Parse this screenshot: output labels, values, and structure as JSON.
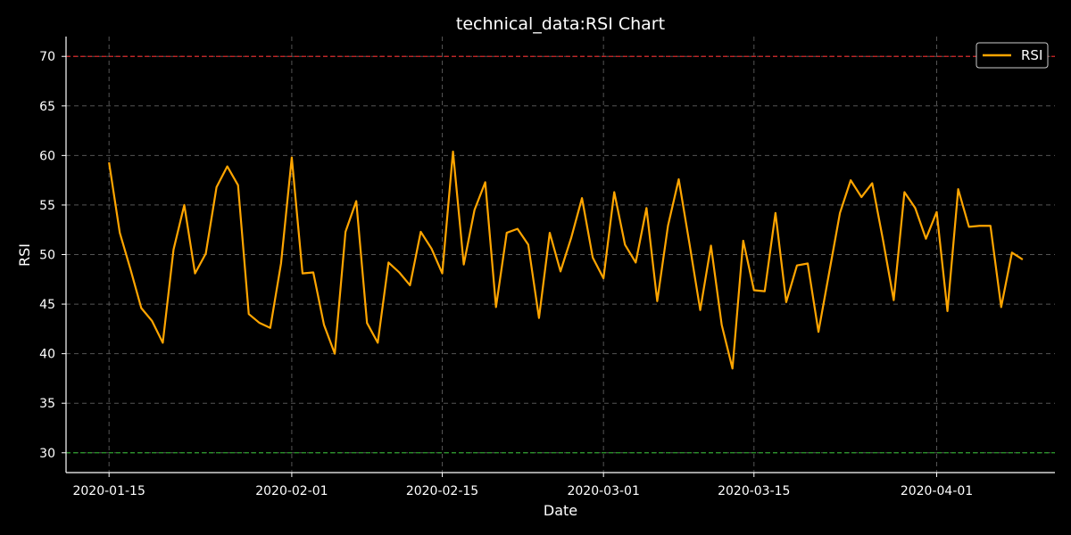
{
  "chart_data": {
    "type": "line",
    "title": "technical_data:RSI Chart",
    "xlabel": "Date",
    "ylabel": "RSI",
    "x_start": "2020-01-15",
    "x_end": "2020-04-08",
    "xlim": [
      "2020-01-11",
      "2020-04-12"
    ],
    "ylim": [
      28,
      72
    ],
    "yticks": [
      30,
      35,
      40,
      45,
      50,
      55,
      60,
      65,
      70
    ],
    "xticks": [
      "2020-01-15",
      "2020-02-01",
      "2020-02-15",
      "2020-03-01",
      "2020-03-15",
      "2020-04-01"
    ],
    "grid": true,
    "legend_position": "top-right",
    "reference_lines": [
      {
        "value": 70,
        "color": "#d62728"
      },
      {
        "value": 30,
        "color": "#2ca02c"
      }
    ],
    "series": [
      {
        "name": "RSI",
        "color": "#FFA500",
        "values": [
          59.3,
          52.2,
          48.5,
          44.6,
          43.3,
          41.1,
          50.5,
          55.0,
          48.1,
          50.1,
          56.8,
          58.9,
          57.0,
          44.0,
          43.1,
          42.6,
          49.1,
          59.8,
          48.1,
          48.2,
          42.9,
          40.0,
          52.3,
          55.4,
          43.1,
          41.1,
          49.2,
          48.2,
          46.9,
          52.3,
          50.6,
          48.1,
          60.4,
          49.0,
          54.5,
          57.3,
          44.7,
          52.2,
          52.6,
          51.0,
          43.6,
          52.2,
          48.3,
          51.7,
          55.7,
          49.7,
          47.6,
          56.3,
          51.0,
          49.2,
          54.7,
          45.3,
          52.9,
          57.6,
          51.1,
          44.4,
          50.9,
          42.9,
          38.5,
          51.4,
          46.4,
          46.3,
          54.2,
          45.2,
          48.9,
          49.1,
          42.2,
          48.2,
          54.2,
          57.5,
          55.8,
          57.2,
          51.5,
          45.4,
          56.3,
          54.7,
          51.6,
          54.3,
          44.3,
          56.6,
          52.8,
          52.9,
          52.9,
          44.7,
          50.2,
          49.5
        ]
      }
    ]
  }
}
